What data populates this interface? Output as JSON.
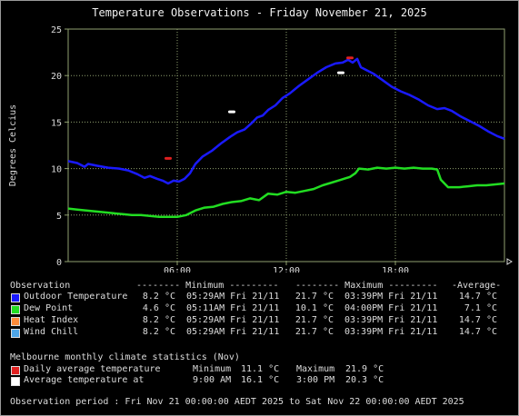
{
  "colors": {
    "outdoor": "#1a1aff",
    "dewpoint": "#22dd22",
    "heatindex": "#ff8c3a",
    "windchill": "#4ea6e8",
    "daily_avg_marker": "#e02020",
    "avg_temp_marker": "#ffffff",
    "grid": "#8f9f6f",
    "plot_bg": "#000000"
  },
  "chart_data": {
    "type": "line",
    "title": "Temperature Observations - Friday November 21, 2025",
    "ylabel": "Degrees Celcius",
    "xlabel": "",
    "xlim": [
      0,
      24
    ],
    "ylim": [
      0,
      25
    ],
    "x_ticks": [
      {
        "value": 6,
        "label": "06:00"
      },
      {
        "value": 12,
        "label": "12:00"
      },
      {
        "value": 18,
        "label": "18:00"
      }
    ],
    "y_ticks": [
      0,
      5,
      10,
      15,
      20,
      25
    ],
    "grid": true,
    "series": [
      {
        "name": "Outdoor Temperature",
        "color": "#1a1aff",
        "points": [
          [
            0,
            10.8
          ],
          [
            0.5,
            10.6
          ],
          [
            0.9,
            10.2
          ],
          [
            1.1,
            10.5
          ],
          [
            1.6,
            10.3
          ],
          [
            2.2,
            10.1
          ],
          [
            2.8,
            10.0
          ],
          [
            3.3,
            9.8
          ],
          [
            3.8,
            9.4
          ],
          [
            4.2,
            9.0
          ],
          [
            4.5,
            9.2
          ],
          [
            4.9,
            8.9
          ],
          [
            5.2,
            8.7
          ],
          [
            5.5,
            8.4
          ],
          [
            5.8,
            8.7
          ],
          [
            6.1,
            8.6
          ],
          [
            6.4,
            8.9
          ],
          [
            6.7,
            9.5
          ],
          [
            7.0,
            10.5
          ],
          [
            7.4,
            11.3
          ],
          [
            7.9,
            11.9
          ],
          [
            8.4,
            12.7
          ],
          [
            8.9,
            13.4
          ],
          [
            9.3,
            13.9
          ],
          [
            9.7,
            14.2
          ],
          [
            10.1,
            14.9
          ],
          [
            10.4,
            15.5
          ],
          [
            10.7,
            15.7
          ],
          [
            11.0,
            16.3
          ],
          [
            11.4,
            16.8
          ],
          [
            11.8,
            17.6
          ],
          [
            12.2,
            18.1
          ],
          [
            12.7,
            18.9
          ],
          [
            13.2,
            19.6
          ],
          [
            13.7,
            20.3
          ],
          [
            14.2,
            20.9
          ],
          [
            14.7,
            21.3
          ],
          [
            15.1,
            21.4
          ],
          [
            15.4,
            21.7
          ],
          [
            15.65,
            21.4
          ],
          [
            15.9,
            21.8
          ],
          [
            16.1,
            20.9
          ],
          [
            16.4,
            20.6
          ],
          [
            16.8,
            20.2
          ],
          [
            17.3,
            19.5
          ],
          [
            17.8,
            18.8
          ],
          [
            18.3,
            18.3
          ],
          [
            18.8,
            17.9
          ],
          [
            19.3,
            17.4
          ],
          [
            19.8,
            16.8
          ],
          [
            20.3,
            16.4
          ],
          [
            20.7,
            16.5
          ],
          [
            21.1,
            16.2
          ],
          [
            21.6,
            15.6
          ],
          [
            22.1,
            15.1
          ],
          [
            22.6,
            14.6
          ],
          [
            23.1,
            14.0
          ],
          [
            23.6,
            13.5
          ],
          [
            24.0,
            13.2
          ]
        ]
      },
      {
        "name": "Dew Point",
        "color": "#22dd22",
        "points": [
          [
            0,
            5.7
          ],
          [
            0.5,
            5.6
          ],
          [
            1.0,
            5.5
          ],
          [
            1.5,
            5.4
          ],
          [
            2.0,
            5.3
          ],
          [
            2.5,
            5.2
          ],
          [
            3.0,
            5.1
          ],
          [
            3.5,
            5.0
          ],
          [
            4.0,
            5.0
          ],
          [
            4.5,
            4.9
          ],
          [
            5.0,
            4.8
          ],
          [
            5.5,
            4.8
          ],
          [
            6.0,
            4.8
          ],
          [
            6.5,
            5.0
          ],
          [
            7.0,
            5.5
          ],
          [
            7.5,
            5.8
          ],
          [
            8.0,
            5.9
          ],
          [
            8.5,
            6.2
          ],
          [
            9.0,
            6.4
          ],
          [
            9.5,
            6.5
          ],
          [
            10.0,
            6.8
          ],
          [
            10.5,
            6.6
          ],
          [
            11.0,
            7.3
          ],
          [
            11.5,
            7.2
          ],
          [
            12.0,
            7.5
          ],
          [
            12.5,
            7.4
          ],
          [
            13.0,
            7.6
          ],
          [
            13.5,
            7.8
          ],
          [
            14.0,
            8.2
          ],
          [
            14.5,
            8.5
          ],
          [
            15.0,
            8.8
          ],
          [
            15.5,
            9.1
          ],
          [
            15.8,
            9.5
          ],
          [
            16.0,
            10.0
          ],
          [
            16.5,
            9.9
          ],
          [
            17.0,
            10.1
          ],
          [
            17.5,
            10.0
          ],
          [
            18.0,
            10.1
          ],
          [
            18.5,
            10.0
          ],
          [
            19.0,
            10.1
          ],
          [
            19.5,
            10.0
          ],
          [
            20.0,
            10.0
          ],
          [
            20.3,
            9.9
          ],
          [
            20.5,
            8.8
          ],
          [
            20.9,
            8.0
          ],
          [
            21.5,
            8.0
          ],
          [
            22.0,
            8.1
          ],
          [
            22.5,
            8.2
          ],
          [
            23.0,
            8.2
          ],
          [
            23.5,
            8.3
          ],
          [
            24.0,
            8.4
          ]
        ]
      }
    ],
    "markers": [
      {
        "name": "Daily average temperature minimum",
        "x": 5.5,
        "y": 11.1,
        "color": "#e02020"
      },
      {
        "name": "Daily average temperature maximum",
        "x": 15.5,
        "y": 21.9,
        "color": "#e02020"
      },
      {
        "name": "Average temperature at 9:00 AM",
        "x": 9.0,
        "y": 16.1,
        "color": "#ffffff"
      },
      {
        "name": "Average temperature at 3:00 PM",
        "x": 15.0,
        "y": 20.3,
        "color": "#ffffff"
      }
    ]
  },
  "legend": {
    "header": {
      "observation": "Observation",
      "minimum": "-------- Minimum ---------",
      "maximum": "-------- Maximum ---------",
      "average": "-Average-"
    },
    "rows": [
      {
        "label": "Outdoor Temperature",
        "min_val": "8.2 °C",
        "min_time": "05:29AM Fri 21/11",
        "max_val": "21.7 °C",
        "max_time": "03:39PM Fri 21/11",
        "avg": "14.7 °C",
        "color": "#1a1aff"
      },
      {
        "label": "Dew Point",
        "min_val": "4.6 °C",
        "min_time": "05:11AM Fri 21/11",
        "max_val": "10.1 °C",
        "max_time": "04:00PM Fri 21/11",
        "avg": "7.1 °C",
        "color": "#22dd22"
      },
      {
        "label": "Heat Index",
        "min_val": "8.2 °C",
        "min_time": "05:29AM Fri 21/11",
        "max_val": "21.7 °C",
        "max_time": "03:39PM Fri 21/11",
        "avg": "14.7 °C",
        "color": "#ff8c3a"
      },
      {
        "label": "Wind Chill",
        "min_val": "8.2 °C",
        "min_time": "05:29AM Fri 21/11",
        "max_val": "21.7 °C",
        "max_time": "03:39PM Fri 21/11",
        "avg": "14.7 °C",
        "color": "#4ea6e8"
      }
    ]
  },
  "climate": {
    "heading": "Melbourne monthly climate statistics (Nov)",
    "daily": {
      "label": "Daily average temperature",
      "min_label": "Minimum",
      "min_val": "11.1 °C",
      "max_label": "Maximum",
      "max_val": "21.9 °C"
    },
    "average_at": {
      "label": "Average temperature at",
      "t1": "9:00 AM",
      "v1": "16.1 °C",
      "t2": "3:00 PM",
      "v2": "20.3 °C"
    }
  },
  "period": "Observation period : Fri Nov 21 00:00:00 AEDT 2025 to Sat Nov 22 00:00:00 AEDT 2025"
}
